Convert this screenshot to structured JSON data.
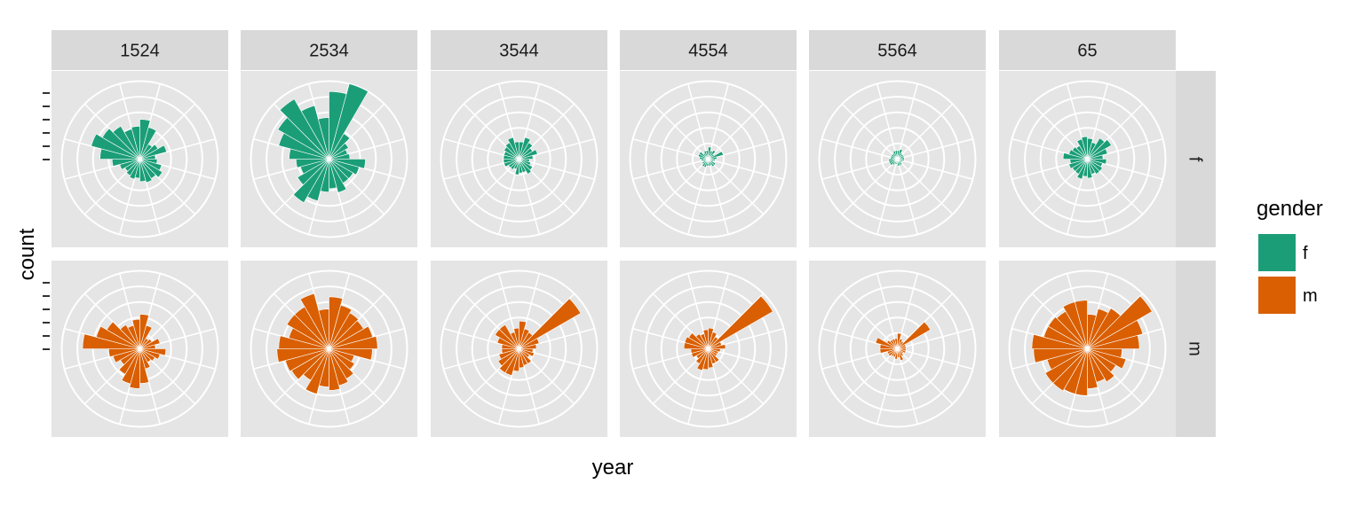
{
  "chart_data": {
    "type": "bar",
    "coord": "polar",
    "facets": {
      "cols": [
        "1524",
        "2534",
        "3544",
        "4554",
        "5564",
        "65"
      ],
      "rows": [
        "f",
        "m"
      ]
    },
    "xlabel": "year",
    "ylabel": "count",
    "legend": {
      "title": "gender",
      "position": "right",
      "entries": [
        {
          "label": "f",
          "color": "#1b9e77"
        },
        {
          "label": "m",
          "color": "#d95f02"
        }
      ]
    },
    "grid": true,
    "rings": 5,
    "panels": [
      {
        "col": "1524",
        "row": "f",
        "values": [
          2.3,
          1.9,
          1.0,
          1.2,
          1.6,
          0.9,
          1.0,
          1.3,
          1.5,
          1.3,
          1.4,
          1.3,
          1.1,
          1.2,
          1.1,
          1.0,
          1.2,
          1.6,
          2.3,
          2.9,
          2.5,
          2.2,
          1.8,
          1.9
        ]
      },
      {
        "col": "1524",
        "row": "m",
        "values": [
          2.0,
          1.4,
          0.7,
          0.8,
          1.2,
          0.9,
          1.5,
          1.2,
          1.0,
          0.9,
          1.2,
          2.0,
          2.3,
          2.1,
          1.7,
          1.3,
          1.6,
          1.8,
          3.3,
          2.6,
          2.2,
          1.6,
          1.4,
          1.7
        ]
      },
      {
        "col": "2534",
        "row": "f",
        "values": [
          3.9,
          4.5,
          1.7,
          1.3,
          1.1,
          1.2,
          2.1,
          1.8,
          1.6,
          1.6,
          2.0,
          1.7,
          1.9,
          2.5,
          2.9,
          2.1,
          1.7,
          1.9,
          2.3,
          3.0,
          3.4,
          4.0,
          3.2,
          2.4
        ]
      },
      {
        "col": "2534",
        "row": "m",
        "values": [
          3.0,
          2.6,
          2.4,
          2.3,
          2.6,
          2.8,
          2.5,
          1.5,
          1.7,
          2.0,
          2.2,
          2.4,
          2.2,
          2.7,
          2.1,
          2.5,
          2.6,
          3.0,
          2.9,
          2.4,
          2.8,
          2.8,
          3.3,
          2.3
        ]
      },
      {
        "col": "3544",
        "row": "f",
        "values": [
          1.0,
          1.3,
          1.1,
          0.9,
          1.1,
          0.8,
          0.6,
          0.7,
          0.9,
          1.0,
          0.8,
          0.8,
          0.9,
          0.6,
          0.7,
          0.7,
          0.9,
          0.9,
          0.9,
          0.9,
          1.0,
          1.1,
          1.3,
          1.0
        ]
      },
      {
        "col": "3544",
        "row": "m",
        "values": [
          1.6,
          1.2,
          1.1,
          4.1,
          1.2,
          1.0,
          0.8,
          0.9,
          0.7,
          1.0,
          1.0,
          1.1,
          1.3,
          1.6,
          1.6,
          1.4,
          1.2,
          1.0,
          1.0,
          1.3,
          1.6,
          1.6,
          1.0,
          1.2
        ]
      },
      {
        "col": "4554",
        "row": "f",
        "values": [
          0.7,
          0.5,
          0.6,
          0.4,
          0.9,
          0.5,
          0.4,
          0.3,
          0.5,
          0.5,
          0.4,
          0.4,
          0.4,
          0.5,
          0.5,
          0.4,
          0.3,
          0.4,
          0.5,
          0.6,
          0.6,
          0.4,
          0.5,
          0.5
        ]
      },
      {
        "col": "4554",
        "row": "m",
        "values": [
          1.2,
          1.0,
          0.8,
          4.3,
          0.8,
          1.0,
          0.7,
          0.6,
          0.6,
          0.9,
          0.9,
          1.1,
          1.2,
          1.3,
          1.0,
          0.8,
          1.0,
          1.0,
          1.4,
          1.4,
          1.3,
          1.0,
          0.9,
          1.1
        ]
      },
      {
        "col": "5564",
        "row": "f",
        "values": [
          0.5,
          0.6,
          0.4,
          0.4,
          0.4,
          0.4,
          0.4,
          0.3,
          0.3,
          0.4,
          0.4,
          0.4,
          0.3,
          0.3,
          0.4,
          0.5,
          0.5,
          0.5,
          0.4,
          0.4,
          0.4,
          0.4,
          0.5,
          0.5
        ]
      },
      {
        "col": "5564",
        "row": "m",
        "values": [
          0.9,
          0.6,
          0.5,
          2.2,
          0.5,
          0.5,
          0.5,
          0.5,
          0.4,
          0.5,
          0.7,
          0.5,
          0.6,
          0.5,
          0.5,
          0.6,
          0.6,
          1.0,
          1.0,
          1.3,
          0.7,
          0.6,
          0.6,
          0.6
        ]
      },
      {
        "col": "65",
        "row": "f",
        "values": [
          1.2,
          1.0,
          1.4,
          1.6,
          1.2,
          0.9,
          1.1,
          0.9,
          1.0,
          1.0,
          0.9,
          1.1,
          1.0,
          1.2,
          1.0,
          1.0,
          1.1,
          1.0,
          1.4,
          1.1,
          1.0,
          0.9,
          1.2,
          1.3
        ]
      },
      {
        "col": "65",
        "row": "m",
        "values": [
          2.0,
          2.4,
          2.7,
          4.3,
          3.3,
          3.0,
          2.0,
          2.3,
          1.9,
          2.2,
          2.0,
          2.3,
          2.7,
          2.7,
          2.8,
          2.8,
          2.4,
          3.1,
          3.2,
          2.6,
          2.6,
          2.5,
          2.8,
          2.8
        ]
      }
    ]
  }
}
